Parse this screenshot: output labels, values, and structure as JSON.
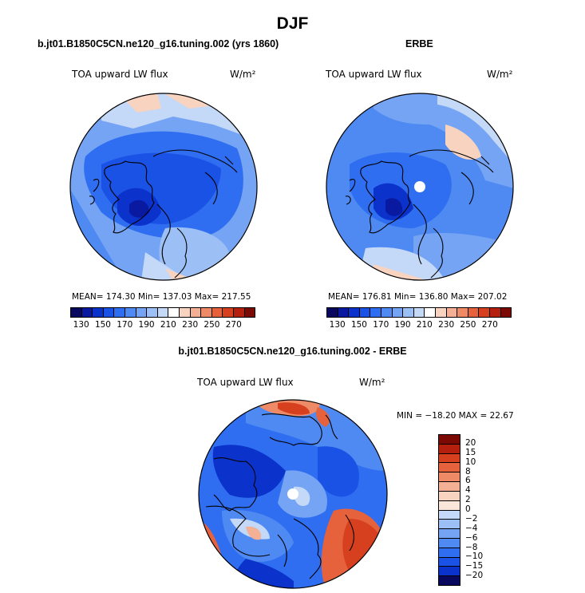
{
  "title": "DJF",
  "panels": [
    {
      "subtitle": "b.jt01.B1850C5CN.ne120_g16.tuning.002 (yrs 1860)",
      "variable": "TOA upward LW flux",
      "units": "W/m²",
      "stats": "MEAN= 174.30  Min= 137.03  Max= 217.55"
    },
    {
      "subtitle": "ERBE",
      "variable": "TOA upward LW flux",
      "units": "W/m²",
      "stats": "MEAN= 176.81  Min= 136.80  Max= 207.02"
    },
    {
      "subtitle": "b.jt01.B1850C5CN.ne120_g16.tuning.002 - ERBE",
      "variable": "TOA upward LW flux",
      "units": "W/m²",
      "stats": "MIN = −18.20 MAX =  22.67"
    }
  ],
  "abs_colorbar": {
    "tick_labels": [
      "130",
      "150",
      "170",
      "190",
      "210",
      "230",
      "250",
      "270"
    ],
    "colors": [
      "#08085e",
      "#0a1aa0",
      "#0b33cc",
      "#1a52e6",
      "#2f6ef0",
      "#4f8af2",
      "#74a4f3",
      "#9cbff5",
      "#c4d8f7",
      "#ffffff",
      "#f8d3c0",
      "#f3b094",
      "#ef8a66",
      "#e6623c",
      "#d6401e",
      "#b51f0d",
      "#7a0a03"
    ]
  },
  "diff_colorbar": {
    "labels": [
      "20",
      "15",
      "10",
      "8",
      "6",
      "4",
      "2",
      "0",
      "−2",
      "−4",
      "−6",
      "−8",
      "−10",
      "−15",
      "−20"
    ],
    "colors": [
      "#7a0a03",
      "#b51f0d",
      "#d6401e",
      "#e6623c",
      "#ef8a66",
      "#f3b094",
      "#f8d3c0",
      "#fbe6dc",
      "#c4d8f7",
      "#9cbff5",
      "#74a4f3",
      "#4f8af2",
      "#2f6ef0",
      "#1a52e6",
      "#0b33cc",
      "#08085e"
    ]
  }
}
